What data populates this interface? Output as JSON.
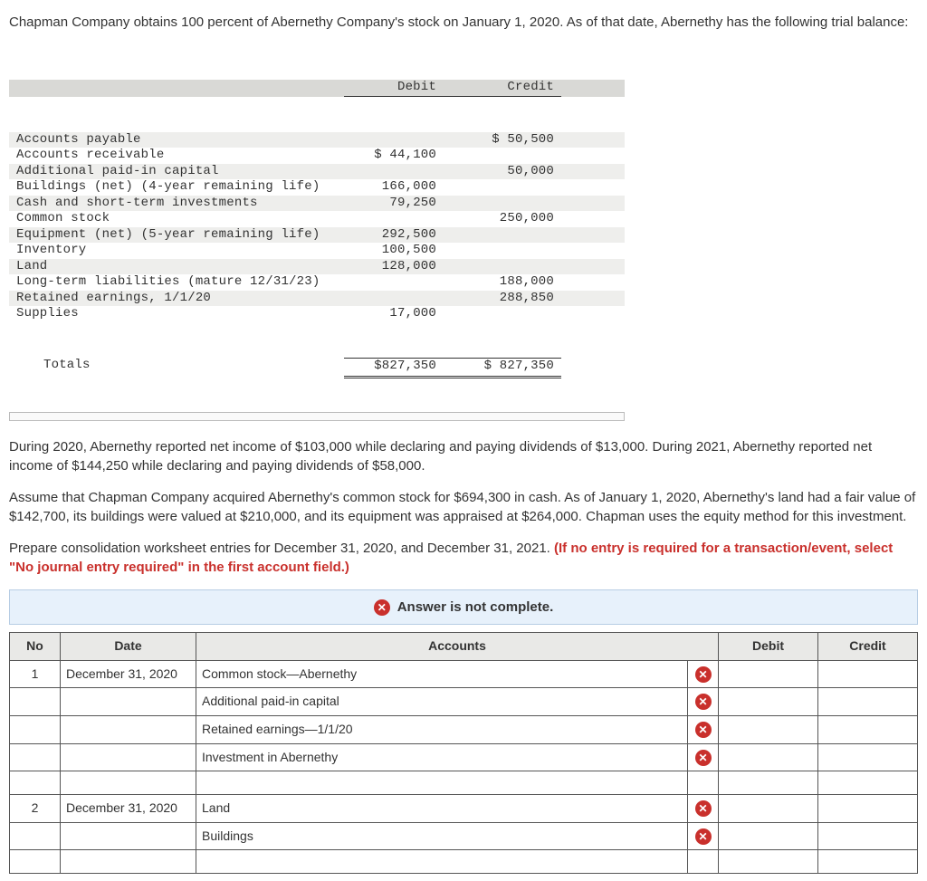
{
  "intro": "Chapman Company obtains 100 percent of Abernethy Company's stock on January 1, 2020. As of that date, Abernethy has the following trial balance:",
  "trial_balance": {
    "head": {
      "debit": "Debit",
      "credit": "Credit"
    },
    "rows": [
      {
        "label": "Accounts payable",
        "debit": "",
        "credit": "$ 50,500",
        "shade": true
      },
      {
        "label": "Accounts receivable",
        "debit": "$ 44,100",
        "credit": "",
        "shade": false
      },
      {
        "label": "Additional paid-in capital",
        "debit": "",
        "credit": "50,000",
        "shade": true
      },
      {
        "label": "Buildings (net) (4-year remaining life)",
        "debit": "166,000",
        "credit": "",
        "shade": false
      },
      {
        "label": "Cash and short-term investments",
        "debit": "79,250",
        "credit": "",
        "shade": true
      },
      {
        "label": "Common stock",
        "debit": "",
        "credit": "250,000",
        "shade": false
      },
      {
        "label": "Equipment (net) (5-year remaining life)",
        "debit": "292,500",
        "credit": "",
        "shade": true
      },
      {
        "label": "Inventory",
        "debit": "100,500",
        "credit": "",
        "shade": false
      },
      {
        "label": "Land",
        "debit": "128,000",
        "credit": "",
        "shade": true
      },
      {
        "label": "Long-term liabilities (mature 12/31/23)",
        "debit": "",
        "credit": "188,000",
        "shade": false
      },
      {
        "label": "Retained earnings, 1/1/20",
        "debit": "",
        "credit": "288,850",
        "shade": true
      },
      {
        "label": "Supplies",
        "debit": "17,000",
        "credit": "",
        "shade": false
      }
    ],
    "totals": {
      "label": "Totals",
      "debit": "$827,350",
      "credit": "$ 827,350"
    }
  },
  "p2": "During 2020, Abernethy reported net income of $103,000 while declaring and paying dividends of $13,000. During 2021, Abernethy reported net income of $144,250 while declaring and paying dividends of $58,000.",
  "p3": "Assume that Chapman Company acquired Abernethy's common stock for $694,300 in cash. As of January 1, 2020, Abernethy's land had a fair value of $142,700, its buildings were valued at $210,000, and its equipment was appraised at $264,000. Chapman uses the equity method for this investment.",
  "p4a": "Prepare consolidation worksheet entries for December 31, 2020, and December 31, 2021. ",
  "p4b": "(If no entry is required for a transaction/event, select \"No journal entry required\" in the first account field.)",
  "notice": "Answer is not complete.",
  "entry_table": {
    "headers": {
      "no": "No",
      "date": "Date",
      "accounts": "Accounts",
      "debit": "Debit",
      "credit": "Credit"
    },
    "rows": [
      {
        "no": "1",
        "date": "December 31, 2020",
        "account": "Common stock—Abernethy",
        "mark": true,
        "debit": "",
        "credit": ""
      },
      {
        "no": "",
        "date": "",
        "account": "Additional paid-in capital",
        "mark": true,
        "debit": "",
        "credit": ""
      },
      {
        "no": "",
        "date": "",
        "account": "Retained earnings—1/1/20",
        "mark": true,
        "debit": "",
        "credit": ""
      },
      {
        "no": "",
        "date": "",
        "account": "Investment in Abernethy",
        "mark": true,
        "debit": "",
        "credit": ""
      },
      {
        "no": "",
        "date": "",
        "account": "",
        "mark": false,
        "debit": "",
        "credit": ""
      },
      {
        "no": "2",
        "date": "December 31, 2020",
        "account": "Land",
        "mark": true,
        "debit": "",
        "credit": ""
      },
      {
        "no": "",
        "date": "",
        "account": "Buildings",
        "mark": true,
        "debit": "",
        "credit": ""
      },
      {
        "no": "",
        "date": "",
        "account": "",
        "mark": false,
        "debit": "",
        "credit": ""
      }
    ]
  },
  "icons": {
    "x": "✕"
  }
}
